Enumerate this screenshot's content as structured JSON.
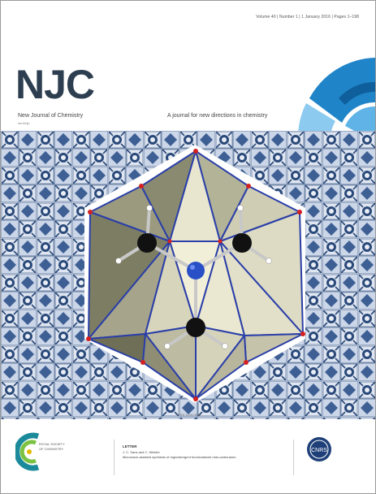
{
  "cover": {
    "issue_line": "Volume 40 | Number 1 | 1 January 2016 | Pages 1–198",
    "logo": "NJC",
    "journal_name": "New Journal of Chemistry",
    "issn_small": "rsc.li/njc",
    "tagline": "A journal for new directions in chemistry",
    "issn": "ISSN 1144-0546",
    "colors": {
      "logo": "#2d3e50",
      "accent_blue": "#2e8fd0",
      "tile_blue": "#2b4a7a",
      "polyhedron_line": "#2a3fa8",
      "vertex_red": "#d42020"
    }
  },
  "footer": {
    "publisher_lines": [
      "ROYAL SOCIETY",
      "OF CHEMISTRY"
    ],
    "article_label": "LETTER",
    "article_authors": "J. C. Sans and C. Winkler",
    "article_title": "Microwave-assisted synthesis of regiodivergent functionalized nido-carboranes",
    "partner_logo": "CNRS"
  }
}
